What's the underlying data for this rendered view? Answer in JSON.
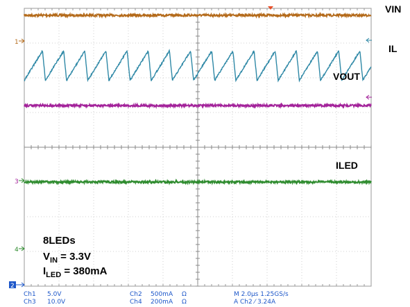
{
  "chart_data": {
    "type": "line",
    "title": "",
    "xlabel": "",
    "ylabel": "",
    "grid": true,
    "divisions": {
      "x": 10,
      "y": 8
    },
    "time_per_div_us": 2.0,
    "waveforms": [
      {
        "label": "VIN",
        "channel": 1,
        "marker": "1",
        "color": "#b46a1a",
        "shape": "flat",
        "level_div": 3.8
      },
      {
        "label": "IL",
        "channel": 2,
        "marker": "",
        "color": "#2e88a6",
        "shape": "sawtooth",
        "level_div": 2.35,
        "ripple_div": 0.85,
        "period_us": 1.22
      },
      {
        "label": "VOUT",
        "channel": 4,
        "marker": "",
        "color": "#a3229a",
        "shape": "flat",
        "level_div": 1.2
      },
      {
        "label": "ILED",
        "channel": 3,
        "marker": "3",
        "color": "#2e8b2e",
        "shape": "flat",
        "level_div": -1.0
      }
    ],
    "annotation": {
      "line1": "8LEDs",
      "vin_main": "V",
      "vin_sub": "IN",
      "vin_rest": " = 3.3V",
      "iled_main": "I",
      "iled_sub": "LED",
      "iled_rest": " = 380mA"
    },
    "markers": {
      "ch4": "4",
      "ch2": "2"
    }
  },
  "status": {
    "ch1_name": "Ch1",
    "ch1_scale": "5.0V",
    "ch3_name": "Ch3",
    "ch3_scale": "10.0V",
    "ch2_name": "Ch2",
    "ch2_scale": "500mA",
    "ch2_unit": "Ω",
    "ch4_name": "Ch4",
    "ch4_scale": "200mA",
    "ch4_unit": "Ω",
    "timebase": "M 2.0µs 1.25GS/s",
    "trigger": "A  Ch2  ⁄  3.24A"
  },
  "colors": {
    "ch1": "#b46a1a",
    "ch2": "#2e88a6",
    "ch3": "#2e8b2e",
    "ch4": "#a3229a",
    "trigger": "#e8502a"
  }
}
